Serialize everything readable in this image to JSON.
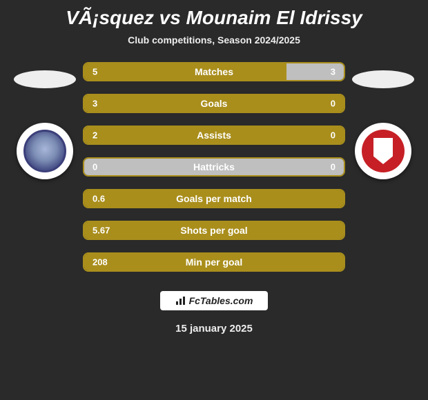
{
  "title": "VÃ¡squez vs Mounaim El Idrissy",
  "subtitle": "Club competitions, Season 2024/2025",
  "date": "15 january 2025",
  "footer_brand": "FcTables.com",
  "colors": {
    "left_fill": "#a98e1c",
    "right_fill": "#bfbfbf",
    "bar_border": "#a98e1c",
    "bg": "#2a2a2a",
    "text": "#ffffff"
  },
  "bars": [
    {
      "label": "Matches",
      "left_val": "5",
      "right_val": "3",
      "left_pct": 78,
      "right_pct": 22
    },
    {
      "label": "Goals",
      "left_val": "3",
      "right_val": "0",
      "left_pct": 100,
      "right_pct": 0
    },
    {
      "label": "Assists",
      "left_val": "2",
      "right_val": "0",
      "left_pct": 100,
      "right_pct": 0
    },
    {
      "label": "Hattricks",
      "left_val": "0",
      "right_val": "0",
      "left_pct": 0,
      "right_pct": 0
    },
    {
      "label": "Goals per match",
      "left_val": "0.6",
      "right_val": null,
      "left_pct": 100,
      "right_pct": 0
    },
    {
      "label": "Shots per goal",
      "left_val": "5.67",
      "right_val": null,
      "left_pct": 100,
      "right_pct": 0
    },
    {
      "label": "Min per goal",
      "left_val": "208",
      "right_val": null,
      "left_pct": 100,
      "right_pct": 0
    }
  ]
}
